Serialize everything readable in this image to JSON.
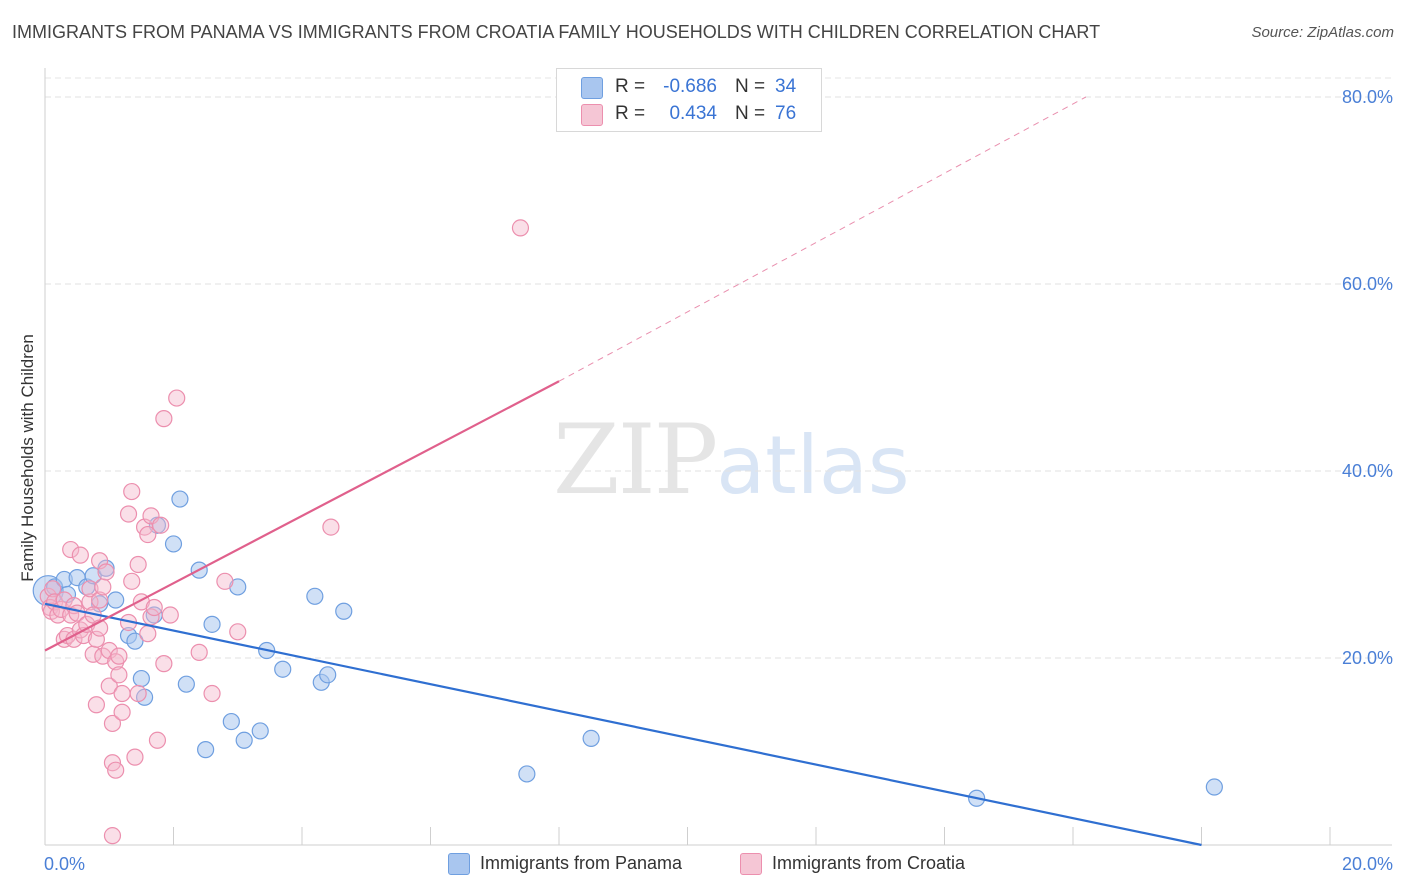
{
  "title": "IMMIGRANTS FROM PANAMA VS IMMIGRANTS FROM CROATIA FAMILY HOUSEHOLDS WITH CHILDREN CORRELATION CHART",
  "source": "Source: ZipAtlas.com",
  "watermark": {
    "zip": "ZIP",
    "atlas": "atlas"
  },
  "legend_top": [
    {
      "r_label": "R =",
      "r_value": "-0.686",
      "n_label": "N =",
      "n_value": "34",
      "color": "#a9c6ef"
    },
    {
      "r_label": "R =",
      "r_value": "0.434",
      "n_label": "N =",
      "n_value": "76",
      "color": "#f5b7cb"
    }
  ],
  "legend_bottom": [
    {
      "label": "Immigrants from Panama",
      "color": "#a9c6ef"
    },
    {
      "label": "Immigrants from Croatia",
      "color": "#f5b7cb"
    }
  ],
  "chart_data": {
    "type": "scatter",
    "title": "IMMIGRANTS FROM PANAMA VS IMMIGRANTS FROM CROATIA FAMILY HOUSEHOLDS WITH CHILDREN CORRELATION CHART",
    "xlabel": "",
    "ylabel": "Family Households with Children",
    "xlim": [
      0,
      20
    ],
    "ylim": [
      0,
      80
    ],
    "x_tick_labels": [
      "0.0%",
      "20.0%"
    ],
    "y_ticks": [
      20,
      40,
      60,
      80
    ],
    "y_tick_labels": [
      "20.0%",
      "40.0%",
      "60.0%",
      "80.0%"
    ],
    "grid": true,
    "series": [
      {
        "name": "Immigrants from Panama",
        "color": "#6f9fe0",
        "fill": "#a9c6ef",
        "trend": {
          "x0": 0.0,
          "y0": 25.8,
          "x1": 18.0,
          "y1": 0.0,
          "style": "solid",
          "color": "#2f6fd1"
        },
        "points": [
          {
            "x": 0.05,
            "y": 27.2,
            "big": true
          },
          {
            "x": 0.15,
            "y": 27.6
          },
          {
            "x": 0.3,
            "y": 28.4
          },
          {
            "x": 0.35,
            "y": 26.8
          },
          {
            "x": 0.5,
            "y": 28.6
          },
          {
            "x": 0.65,
            "y": 27.6
          },
          {
            "x": 0.75,
            "y": 28.8
          },
          {
            "x": 0.85,
            "y": 25.8
          },
          {
            "x": 0.95,
            "y": 29.6
          },
          {
            "x": 1.1,
            "y": 26.2
          },
          {
            "x": 1.3,
            "y": 22.4
          },
          {
            "x": 1.4,
            "y": 21.8
          },
          {
            "x": 1.5,
            "y": 17.8
          },
          {
            "x": 1.55,
            "y": 15.8
          },
          {
            "x": 1.75,
            "y": 34.2
          },
          {
            "x": 1.7,
            "y": 24.6
          },
          {
            "x": 2.0,
            "y": 32.2
          },
          {
            "x": 2.1,
            "y": 37.0
          },
          {
            "x": 2.2,
            "y": 17.2
          },
          {
            "x": 2.4,
            "y": 29.4
          },
          {
            "x": 2.5,
            "y": 10.2
          },
          {
            "x": 2.6,
            "y": 23.6
          },
          {
            "x": 2.9,
            "y": 13.2
          },
          {
            "x": 3.0,
            "y": 27.6
          },
          {
            "x": 3.1,
            "y": 11.2
          },
          {
            "x": 3.35,
            "y": 12.2
          },
          {
            "x": 3.45,
            "y": 20.8
          },
          {
            "x": 3.7,
            "y": 18.8
          },
          {
            "x": 4.2,
            "y": 26.6
          },
          {
            "x": 4.3,
            "y": 17.4
          },
          {
            "x": 4.4,
            "y": 18.2
          },
          {
            "x": 4.65,
            "y": 25.0
          },
          {
            "x": 7.5,
            "y": 7.6
          },
          {
            "x": 8.5,
            "y": 11.4
          },
          {
            "x": 14.5,
            "y": 5.0
          },
          {
            "x": 18.2,
            "y": 6.2
          }
        ]
      },
      {
        "name": "Immigrants from Croatia",
        "color": "#ec8fae",
        "fill": "#f5b7cb",
        "trend": {
          "x0": 0.0,
          "y0": 20.8,
          "x1": 8.0,
          "y1": 49.6,
          "x2": 16.2,
          "y2": 80.0,
          "style": "solid-then-dashed",
          "color": "#e0608c"
        },
        "points": [
          {
            "x": 0.05,
            "y": 26.6
          },
          {
            "x": 0.08,
            "y": 25.4
          },
          {
            "x": 0.1,
            "y": 25.0
          },
          {
            "x": 0.12,
            "y": 27.4
          },
          {
            "x": 0.15,
            "y": 26.0
          },
          {
            "x": 0.2,
            "y": 24.6
          },
          {
            "x": 0.25,
            "y": 25.2
          },
          {
            "x": 0.3,
            "y": 26.2
          },
          {
            "x": 0.3,
            "y": 22.0
          },
          {
            "x": 0.35,
            "y": 22.4
          },
          {
            "x": 0.4,
            "y": 24.6
          },
          {
            "x": 0.4,
            "y": 31.6
          },
          {
            "x": 0.45,
            "y": 25.6
          },
          {
            "x": 0.45,
            "y": 22.0
          },
          {
            "x": 0.5,
            "y": 24.8
          },
          {
            "x": 0.55,
            "y": 23.0
          },
          {
            "x": 0.55,
            "y": 31.0
          },
          {
            "x": 0.6,
            "y": 22.4
          },
          {
            "x": 0.65,
            "y": 23.6
          },
          {
            "x": 0.7,
            "y": 26.0
          },
          {
            "x": 0.7,
            "y": 27.4
          },
          {
            "x": 0.75,
            "y": 24.6
          },
          {
            "x": 0.75,
            "y": 20.4
          },
          {
            "x": 0.8,
            "y": 15.0
          },
          {
            "x": 0.8,
            "y": 22.0
          },
          {
            "x": 0.85,
            "y": 30.4
          },
          {
            "x": 0.85,
            "y": 23.2
          },
          {
            "x": 0.85,
            "y": 26.2
          },
          {
            "x": 0.9,
            "y": 27.6
          },
          {
            "x": 0.95,
            "y": 29.2
          },
          {
            "x": 0.9,
            "y": 20.2
          },
          {
            "x": 1.0,
            "y": 20.8
          },
          {
            "x": 1.0,
            "y": 17.0
          },
          {
            "x": 1.05,
            "y": 8.8
          },
          {
            "x": 1.05,
            "y": 13.0
          },
          {
            "x": 1.05,
            "y": 1.0
          },
          {
            "x": 1.1,
            "y": 8.0
          },
          {
            "x": 1.1,
            "y": 19.6
          },
          {
            "x": 1.15,
            "y": 20.2
          },
          {
            "x": 1.15,
            "y": 18.2
          },
          {
            "x": 1.2,
            "y": 16.2
          },
          {
            "x": 1.2,
            "y": 14.2
          },
          {
            "x": 1.3,
            "y": 23.8
          },
          {
            "x": 1.3,
            "y": 35.4
          },
          {
            "x": 1.35,
            "y": 37.8
          },
          {
            "x": 1.35,
            "y": 28.2
          },
          {
            "x": 1.4,
            "y": 9.4
          },
          {
            "x": 1.45,
            "y": 30.0
          },
          {
            "x": 1.45,
            "y": 16.2
          },
          {
            "x": 1.5,
            "y": 26.0
          },
          {
            "x": 1.55,
            "y": 34.0
          },
          {
            "x": 1.6,
            "y": 33.2
          },
          {
            "x": 1.6,
            "y": 22.6
          },
          {
            "x": 1.65,
            "y": 35.2
          },
          {
            "x": 1.65,
            "y": 24.4
          },
          {
            "x": 1.7,
            "y": 25.4
          },
          {
            "x": 1.75,
            "y": 11.2
          },
          {
            "x": 1.8,
            "y": 34.2
          },
          {
            "x": 1.85,
            "y": 19.4
          },
          {
            "x": 1.85,
            "y": 45.6
          },
          {
            "x": 1.95,
            "y": 24.6
          },
          {
            "x": 2.05,
            "y": 47.8
          },
          {
            "x": 2.4,
            "y": 20.6
          },
          {
            "x": 2.6,
            "y": 16.2
          },
          {
            "x": 2.8,
            "y": 28.2
          },
          {
            "x": 3.0,
            "y": 22.8
          },
          {
            "x": 4.45,
            "y": 34.0
          },
          {
            "x": 7.4,
            "y": 66.0
          }
        ]
      }
    ]
  }
}
